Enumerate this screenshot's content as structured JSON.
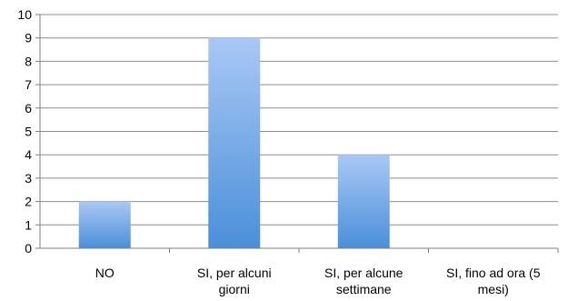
{
  "chart_data": {
    "type": "bar",
    "categories": [
      [
        "NO"
      ],
      [
        "SI, per alcuni",
        "giorni"
      ],
      [
        "SI, per alcune",
        "settimane"
      ],
      [
        "SI, fino ad ora (5",
        "mesi)"
      ]
    ],
    "values": [
      2,
      9,
      4,
      0
    ],
    "ylim": [
      0,
      10
    ],
    "yticks": [
      "0",
      "1",
      "2",
      "3",
      "4",
      "5",
      "6",
      "7",
      "8",
      "9",
      "10"
    ],
    "grid": true,
    "legend": "none",
    "colors": {
      "bar_top": "#a9c8f5",
      "bar_bottom": "#4a8fd9",
      "grid": "#8c8c8c",
      "axis": "#7f7f7f"
    }
  }
}
